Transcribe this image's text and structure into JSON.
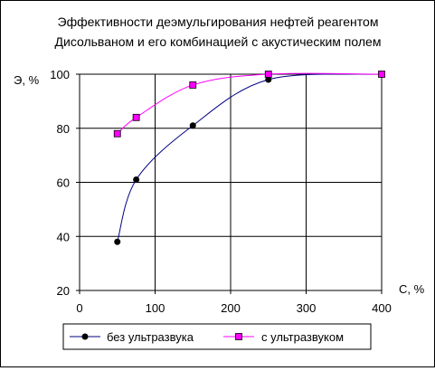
{
  "chart_data": {
    "type": "line",
    "title": [
      "Эффективности деэмульгирования нефтей реагентом",
      "Дисольваном и его комбинацией с акустическим полем"
    ],
    "xlabel": "С, %",
    "ylabel": "Э, %",
    "xlim": [
      0,
      400
    ],
    "ylim": [
      20,
      100
    ],
    "xticks": [
      0,
      100,
      200,
      300,
      400
    ],
    "yticks": [
      20,
      40,
      60,
      80,
      100
    ],
    "grid": true,
    "legend_position": "bottom",
    "series": [
      {
        "name": "без ультразвука",
        "x": [
          50,
          75,
          150,
          250,
          400
        ],
        "y": [
          38,
          61,
          81,
          98,
          100
        ],
        "color": "#000080",
        "marker": "circle",
        "marker_color": "#000000"
      },
      {
        "name": "с ультразвуком",
        "x": [
          50,
          75,
          150,
          250,
          400
        ],
        "y": [
          78,
          84,
          96,
          100,
          100
        ],
        "color": "#ff00ff",
        "marker": "square",
        "marker_color": "#ff00ff"
      }
    ]
  }
}
